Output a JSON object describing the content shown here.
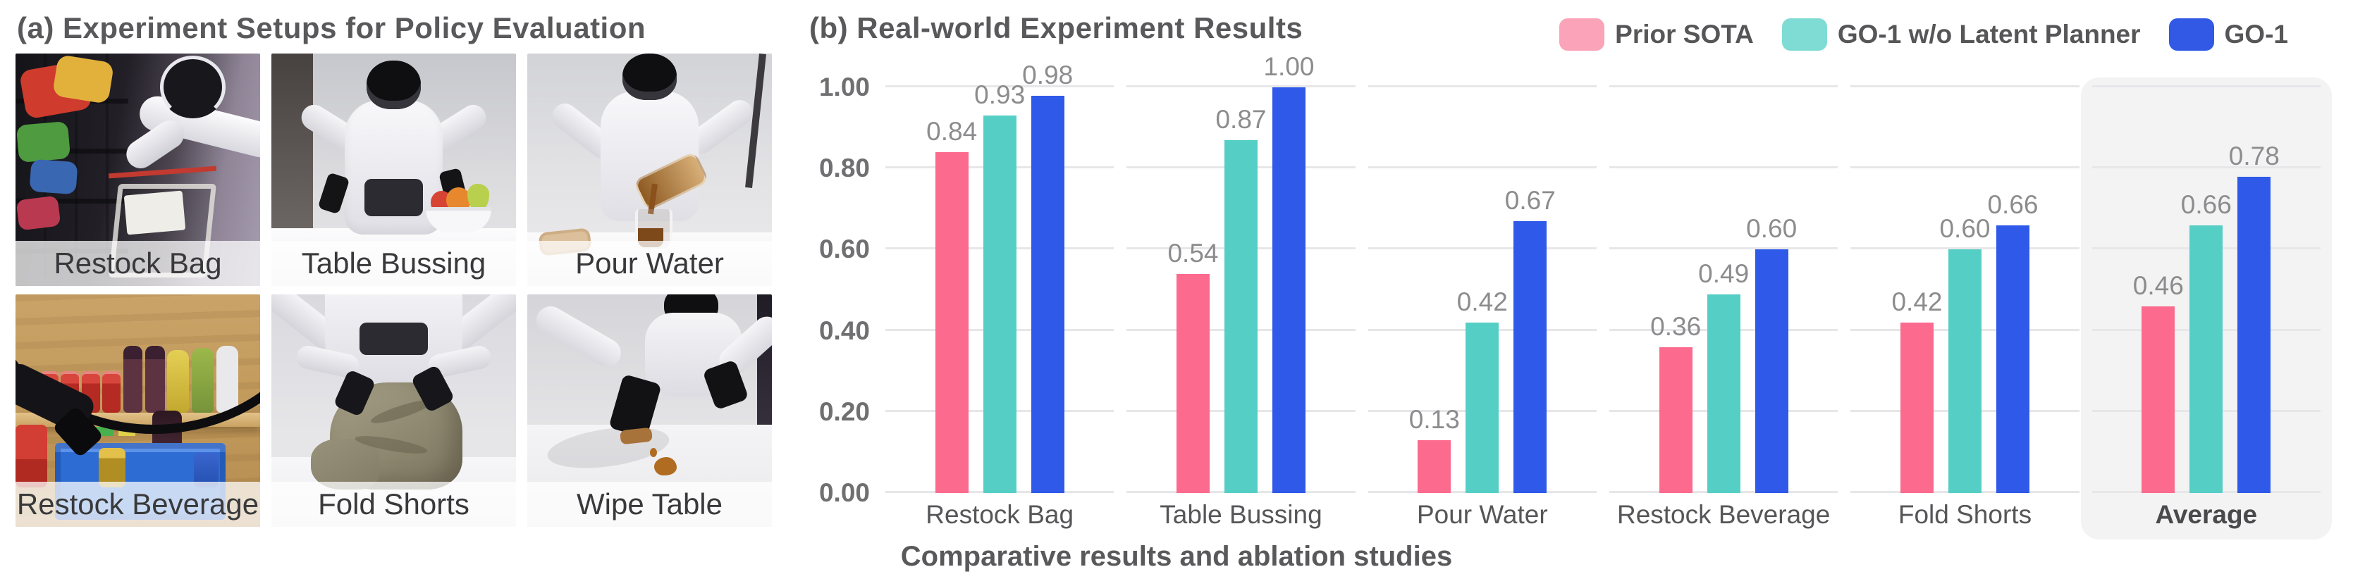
{
  "setups": {
    "title": "(a) Experiment Setups for Policy Evaluation",
    "photos": [
      {
        "label": "Restock Bag"
      },
      {
        "label": "Table Bussing"
      },
      {
        "label": "Pour Water"
      },
      {
        "label": "Restock Beverage"
      },
      {
        "label": "Fold Shorts"
      },
      {
        "label": "Wipe Table"
      }
    ]
  },
  "results": {
    "title": "(b) Real-world Experiment Results",
    "caption": "Comparative results and ablation studies"
  },
  "legend": {
    "items": [
      {
        "label": "Prior SOTA",
        "swatch_color": "#FBA3B8"
      },
      {
        "label": "GO-1 w/o Latent Planner",
        "swatch_color": "#7EDCD4"
      },
      {
        "label": "GO-1",
        "swatch_color": "#3259E6"
      }
    ]
  },
  "chart_data": {
    "type": "bar",
    "title": "(b) Real-world Experiment Results",
    "categories": [
      "Restock Bag",
      "Table Bussing",
      "Pour Water",
      "Restock Beverage",
      "Fold Shorts",
      "Average"
    ],
    "series": [
      {
        "name": "Prior SOTA",
        "color": "#FC6A8E",
        "values": [
          0.84,
          0.54,
          0.13,
          0.36,
          0.42,
          0.46
        ]
      },
      {
        "name": "GO-1 w/o Latent Planner",
        "color": "#55CFC5",
        "values": [
          0.93,
          0.87,
          0.42,
          0.49,
          0.6,
          0.66
        ]
      },
      {
        "name": "GO-1",
        "color": "#2F59E8",
        "values": [
          0.98,
          1.0,
          0.67,
          0.6,
          0.66,
          0.78
        ]
      }
    ],
    "yticks": [
      "0.00",
      "0.20",
      "0.40",
      "0.60",
      "0.80",
      "1.00"
    ],
    "ylim": [
      0,
      1.0
    ],
    "xlabel": "",
    "ylabel": "",
    "grid": true,
    "legend_position": "top-right",
    "highlight_category": "Average",
    "value_labels": true,
    "gridline_color": "#e7e7e9",
    "highlight_box_color": "#f3f3f4"
  }
}
